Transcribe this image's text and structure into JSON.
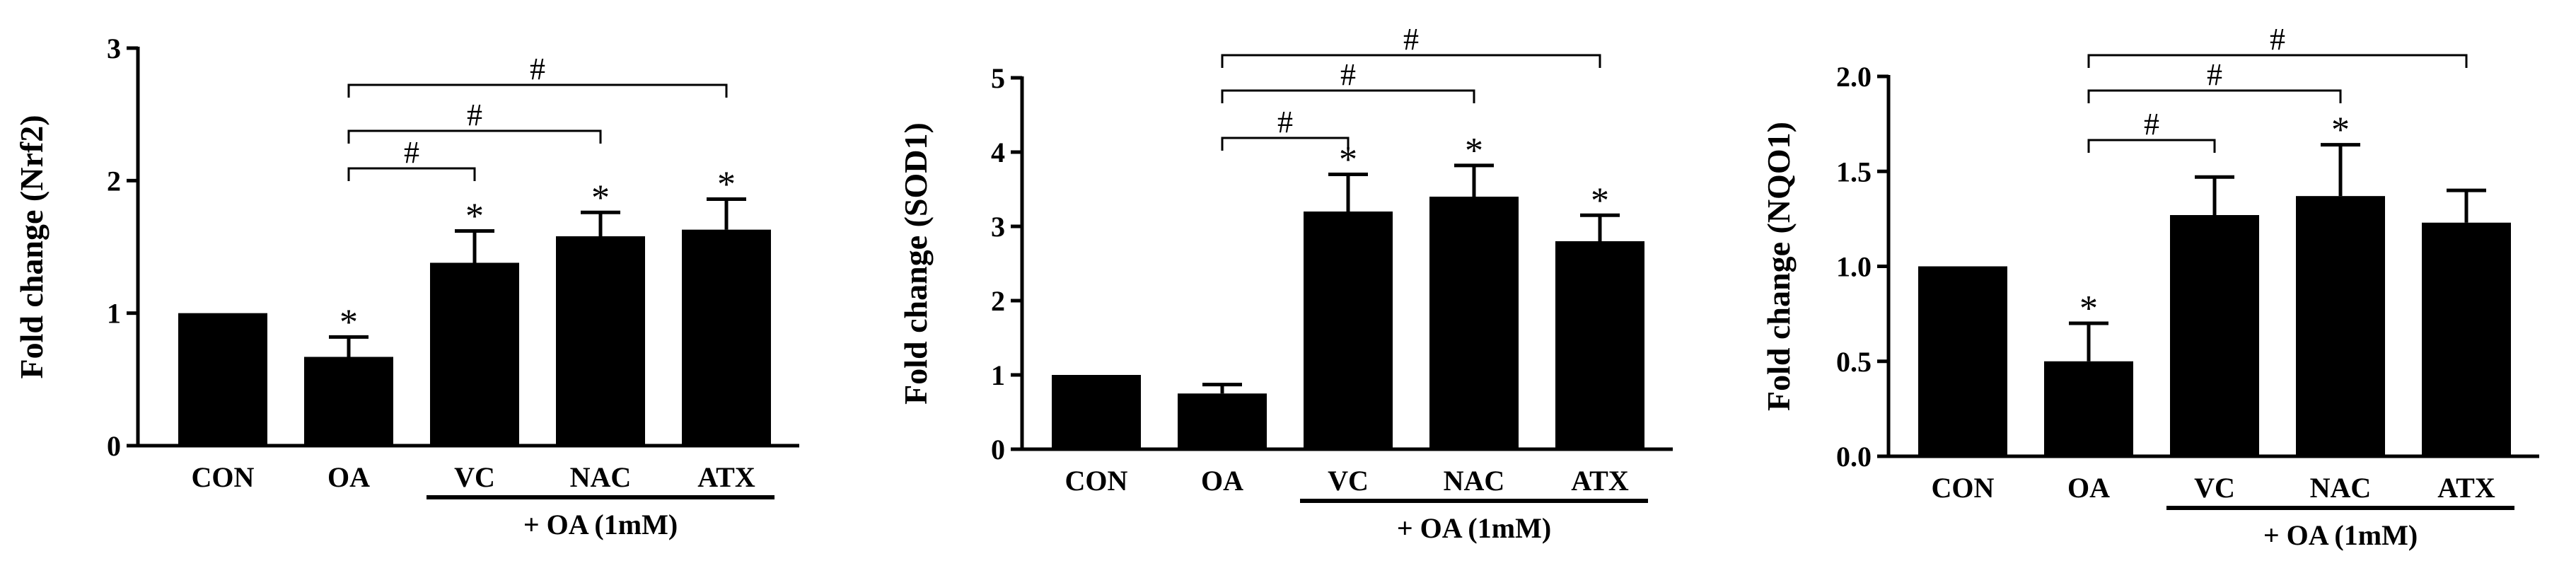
{
  "chart_data": [
    {
      "type": "bar",
      "ylabel": "Fold change (Nrf2)",
      "categories": [
        "CON",
        "OA",
        "VC",
        "NAC",
        "ATX"
      ],
      "values": [
        1.0,
        0.67,
        1.38,
        1.58,
        1.63
      ],
      "errors": [
        0,
        0.15,
        0.24,
        0.18,
        0.23
      ],
      "ylim": [
        0,
        3
      ],
      "yticks": [
        "0",
        "1",
        "2",
        "3"
      ],
      "ytick_values": [
        0,
        1,
        2,
        3
      ],
      "significance": [
        {
          "category": "OA",
          "mark": "*"
        },
        {
          "category": "VC",
          "mark": "*"
        },
        {
          "category": "NAC",
          "mark": "*"
        },
        {
          "category": "ATX",
          "mark": "*"
        }
      ],
      "brackets": [
        {
          "from": "OA",
          "to": "VC",
          "mark": "#"
        },
        {
          "from": "OA",
          "to": "NAC",
          "mark": "#"
        },
        {
          "from": "OA",
          "to": "ATX",
          "mark": "#"
        }
      ],
      "group_label": "+ OA (1mM)",
      "group_categories": [
        "VC",
        "NAC",
        "ATX"
      ]
    },
    {
      "type": "bar",
      "ylabel": "Fold change (SOD1)",
      "categories": [
        "CON",
        "OA",
        "VC",
        "NAC",
        "ATX"
      ],
      "values": [
        1.0,
        0.75,
        3.2,
        3.4,
        2.8
      ],
      "errors": [
        0,
        0.12,
        0.5,
        0.42,
        0.35
      ],
      "ylim": [
        0,
        5
      ],
      "yticks": [
        "0",
        "1",
        "2",
        "3",
        "4",
        "5"
      ],
      "ytick_values": [
        0,
        1,
        2,
        3,
        4,
        5
      ],
      "significance": [
        {
          "category": "VC",
          "mark": "*"
        },
        {
          "category": "NAC",
          "mark": "*"
        },
        {
          "category": "ATX",
          "mark": "*"
        }
      ],
      "brackets": [
        {
          "from": "OA",
          "to": "VC",
          "mark": "#"
        },
        {
          "from": "OA",
          "to": "NAC",
          "mark": "#"
        },
        {
          "from": "OA",
          "to": "ATX",
          "mark": "#"
        }
      ],
      "group_label": "+ OA (1mM)",
      "group_categories": [
        "VC",
        "NAC",
        "ATX"
      ]
    },
    {
      "type": "bar",
      "ylabel": "Fold change (NQO1)",
      "categories": [
        "CON",
        "OA",
        "VC",
        "NAC",
        "ATX"
      ],
      "values": [
        1.0,
        0.5,
        1.27,
        1.37,
        1.23
      ],
      "errors": [
        0,
        0.2,
        0.2,
        0.27,
        0.17
      ],
      "ylim": [
        0,
        2.0
      ],
      "yticks": [
        "0.0",
        "0.5",
        "1.0",
        "1.5",
        "2.0"
      ],
      "ytick_values": [
        0,
        0.5,
        1.0,
        1.5,
        2.0
      ],
      "significance": [
        {
          "category": "OA",
          "mark": "*"
        },
        {
          "category": "NAC",
          "mark": "*"
        }
      ],
      "brackets": [
        {
          "from": "OA",
          "to": "VC",
          "mark": "#"
        },
        {
          "from": "OA",
          "to": "NAC",
          "mark": "#"
        },
        {
          "from": "OA",
          "to": "ATX",
          "mark": "#"
        }
      ],
      "group_label": "+ OA (1mM)",
      "group_categories": [
        "VC",
        "NAC",
        "ATX"
      ]
    }
  ]
}
